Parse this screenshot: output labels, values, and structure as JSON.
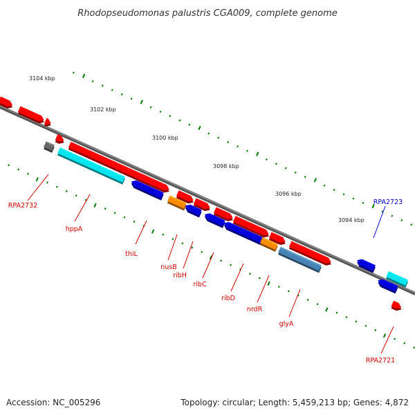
{
  "title": "Rhodopseudomonas palustris CGA009, complete genome",
  "footer": {
    "accession": "Accession: NC_005296",
    "summary": "Topology: circular; Length: 5,459,213 bp; Genes: 4,872"
  },
  "colors": {
    "forward": "#ff0000",
    "reverse": "#0000dd",
    "cyan": "#00e5ee",
    "orange": "#ff8c00",
    "steel": "#4682b4",
    "gray": "#666666",
    "tick": "#007700",
    "backbone": "#808080",
    "label_red": "#cc0000",
    "label_blue": "#0000cc"
  },
  "scale_labels": [
    "3104 kbp",
    "3102 kbp",
    "3100 kbp",
    "3098 kbp",
    "3096 kbp",
    "3094 kbp"
  ],
  "gene_labels": [
    {
      "text": "RPA2732",
      "color": "label_red"
    },
    {
      "text": "hppA",
      "color": "label_red"
    },
    {
      "text": "thiL",
      "color": "label_red"
    },
    {
      "text": "nusB",
      "color": "label_red"
    },
    {
      "text": "ribH",
      "color": "label_red"
    },
    {
      "text": "ribC",
      "color": "label_red"
    },
    {
      "text": "ribD",
      "color": "label_red"
    },
    {
      "text": "nrdR",
      "color": "label_red"
    },
    {
      "text": "glyA",
      "color": "label_red"
    },
    {
      "text": "RPA2723",
      "color": "label_blue"
    },
    {
      "text": "RPA2721",
      "color": "label_red"
    }
  ]
}
